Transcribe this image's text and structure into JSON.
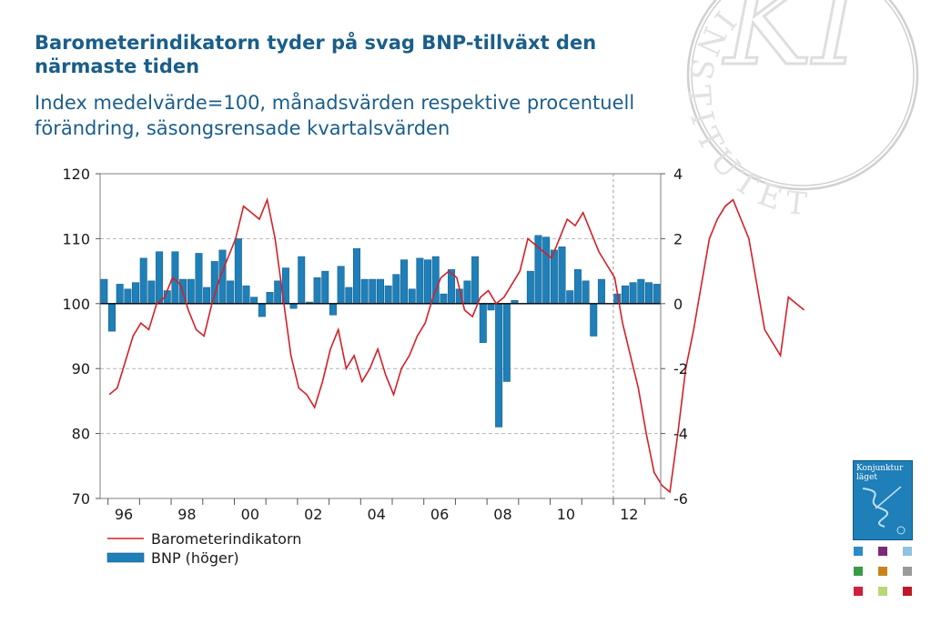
{
  "title": "Barometerindikatorn tyder på svag BNP-tillväxt den närmaste tiden",
  "subtitle": "Index medelvärde=100, månadsvärden respektive procentuell förändring, säsongsrensade kvartalsvärden",
  "seal_text": "INSTITUTET",
  "seal_logo": "KI",
  "cover_title": "Konjunktur läget",
  "covers": [
    {
      "color": "#2a8cc8"
    },
    {
      "color": "#7a2a78"
    },
    {
      "color": "#8fc2e0"
    },
    {
      "color": "#3a9a48"
    },
    {
      "color": "#c8841a"
    },
    {
      "color": "#9a9a9a"
    },
    {
      "color": "#d0203a"
    },
    {
      "color": "#b8d878"
    },
    {
      "color": "#c0182a"
    }
  ],
  "chart_data": {
    "type": "bar+line",
    "title": "Barometerindikatorn tyder på svag BNP-tillväxt den närmaste tiden",
    "x_ticks": [
      "96",
      "98",
      "00",
      "02",
      "04",
      "06",
      "08",
      "10",
      "12"
    ],
    "y_left": {
      "ticks": [
        "120",
        "110",
        "100",
        "90",
        "80",
        "70"
      ],
      "range": [
        70,
        120
      ]
    },
    "y_right": {
      "ticks": [
        "4",
        "2",
        "0",
        "-2",
        "-4",
        "-6"
      ],
      "range": [
        -6,
        4
      ]
    },
    "grid": true,
    "vline_at": "2012 Q1",
    "legend": {
      "placement": "bottom-left",
      "entries": [
        "Barometerindikatorn",
        "BNP (höger)"
      ]
    },
    "series": [
      {
        "name": "BNP (höger)",
        "type": "bar",
        "axis": "right",
        "color": "#1f7fb8",
        "start": "1995 Q4",
        "values": [
          0.75,
          -0.85,
          0.6,
          0.45,
          0.65,
          1.4,
          0.7,
          1.6,
          0.4,
          1.6,
          0.75,
          0.75,
          1.55,
          0.5,
          1.3,
          1.65,
          0.7,
          2.0,
          0.55,
          0.2,
          -0.4,
          0.35,
          0.7,
          1.1,
          -0.15,
          1.45,
          0.05,
          0.8,
          1.0,
          -0.35,
          1.15,
          0.5,
          1.7,
          0.75,
          0.75,
          0.75,
          0.55,
          0.9,
          1.35,
          0.45,
          1.4,
          1.35,
          1.45,
          0.3,
          1.05,
          0.45,
          0.7,
          1.45,
          -1.2,
          -0.2,
          -3.8,
          -2.4,
          0.1,
          0.0,
          1.0,
          2.1,
          2.05,
          1.65,
          1.75,
          0.4,
          1.05,
          0.7,
          -1.0,
          0.75,
          0.0,
          0.3,
          0.55,
          0.65,
          0.75,
          0.65,
          0.6
        ]
      },
      {
        "name": "Barometerindikatorn",
        "type": "line",
        "axis": "left",
        "color": "#d42027",
        "start": "1996 M4",
        "step_months": 3,
        "values": [
          86,
          87,
          91,
          95,
          97,
          96,
          100,
          101,
          104,
          103,
          99,
          96,
          95,
          100,
          104,
          107,
          110,
          115,
          114,
          113,
          116,
          110,
          101,
          92,
          87,
          86,
          84,
          88,
          93,
          96,
          90,
          92,
          88,
          90,
          93,
          89,
          86,
          90,
          92,
          95,
          97,
          101,
          104,
          105,
          104,
          99,
          98,
          101,
          102,
          100,
          101,
          103,
          105,
          110,
          109,
          108,
          107,
          110,
          113,
          112,
          114,
          111,
          108,
          106,
          104,
          97,
          92,
          87,
          80,
          74,
          72,
          71,
          80,
          90,
          96,
          103,
          110,
          113,
          115,
          116,
          113,
          110,
          103,
          96,
          94,
          92,
          101,
          100,
          99
        ]
      }
    ]
  }
}
